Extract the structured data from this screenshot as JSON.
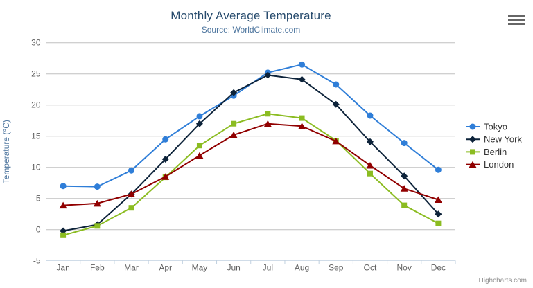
{
  "header": {
    "title": "Monthly Average Temperature",
    "subtitle": "Source: WorldClimate.com"
  },
  "context_menu": {
    "icon": "hamburger-icon"
  },
  "credits": {
    "label": "Highcharts.com"
  },
  "chart_data": {
    "type": "line",
    "title": "Monthly Average Temperature",
    "subtitle": "Source: WorldClimate.com",
    "categories": [
      "Jan",
      "Feb",
      "Mar",
      "Apr",
      "May",
      "Jun",
      "Jul",
      "Aug",
      "Sep",
      "Oct",
      "Nov",
      "Dec"
    ],
    "xlabel": "",
    "ylabel": "Temperature (°C)",
    "ylim": [
      -5,
      30
    ],
    "ytick_step": 5,
    "grid": true,
    "legend_position": "right",
    "series": [
      {
        "name": "Tokyo",
        "color": "#2f7ed8",
        "marker": "circle",
        "values": [
          7.0,
          6.9,
          9.5,
          14.5,
          18.2,
          21.5,
          25.2,
          26.5,
          23.3,
          18.3,
          13.9,
          9.6
        ]
      },
      {
        "name": "New York",
        "color": "#0d233a",
        "marker": "diamond",
        "values": [
          -0.2,
          0.8,
          5.7,
          11.3,
          17.0,
          22.0,
          24.8,
          24.1,
          20.1,
          14.1,
          8.6,
          2.5
        ]
      },
      {
        "name": "Berlin",
        "color": "#8bbc21",
        "marker": "square",
        "values": [
          -0.9,
          0.6,
          3.5,
          8.4,
          13.5,
          17.0,
          18.6,
          17.9,
          14.3,
          9.0,
          3.9,
          1.0
        ]
      },
      {
        "name": "London",
        "color": "#910000",
        "marker": "triangle",
        "values": [
          3.9,
          4.2,
          5.7,
          8.5,
          11.9,
          15.2,
          17.0,
          16.6,
          14.2,
          10.3,
          6.6,
          4.8
        ]
      }
    ],
    "colors": {
      "title": "#274b6d",
      "subtitle": "#4d759e",
      "axis_title": "#4d759e",
      "axis_labels": "#606060",
      "grid_line": "#c0c0c0",
      "axis_line": "#c0d0e0",
      "legend_text": "#333333",
      "credits": "#909090"
    }
  }
}
